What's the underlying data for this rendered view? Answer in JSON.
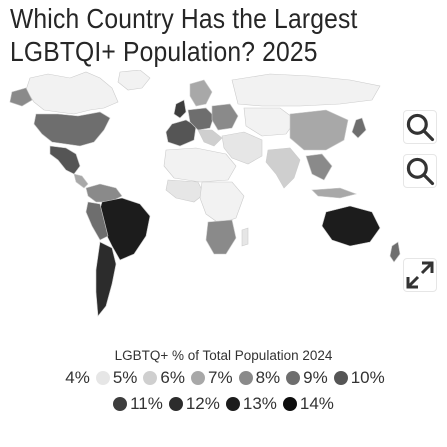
{
  "title": {
    "line1": "Which Country Has the Largest",
    "line2": "LGBTQI+ Population? 2025"
  },
  "controls": {
    "zoom_in_icon": "magnifier-plus-icon",
    "zoom_out_icon": "magnifier-minus-icon",
    "fullscreen_icon": "expand-arrows-icon"
  },
  "chart_data": {
    "type": "choropleth-map",
    "title": "Which Country Has the Largest LGBTQI+ Population? 2025",
    "legend_title": "LGBTQ+ % of Total Population 2024",
    "legend": [
      {
        "label": "4%",
        "color": "#ffffff"
      },
      {
        "label": "5%",
        "color": "#e6e6e6"
      },
      {
        "label": "6%",
        "color": "#cfcfcf"
      },
      {
        "label": "7%",
        "color": "#a8a8a8"
      },
      {
        "label": "8%",
        "color": "#8a8a8a"
      },
      {
        "label": "9%",
        "color": "#6e6e6e"
      },
      {
        "label": "10%",
        "color": "#555555"
      },
      {
        "label": "11%",
        "color": "#3d3d3d"
      },
      {
        "label": "12%",
        "color": "#2c2c2c"
      },
      {
        "label": "13%",
        "color": "#1c1c1c"
      },
      {
        "label": "14%",
        "color": "#0d0d0d"
      }
    ],
    "no_data_color": "#f0f0f0"
  }
}
